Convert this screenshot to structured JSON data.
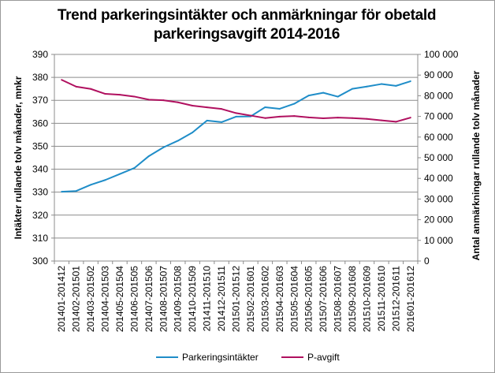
{
  "chart_data": {
    "type": "line",
    "title_line1": "Trend parkeringsintäkter och anmärkningar för obetald",
    "title_line2": "parkeringsavgift 2014-2016",
    "ylabel_left": "Intäkter rullande tolv månader, mnkr",
    "ylabel_right": "Antal anmärkningar rullande tolv månader",
    "ylim_left": [
      300,
      390
    ],
    "ylim_right": [
      0,
      100000
    ],
    "yticks_left": [
      "300",
      "310",
      "320",
      "330",
      "340",
      "350",
      "360",
      "370",
      "380",
      "390"
    ],
    "yticks_right": [
      "0",
      "10 000",
      "20 000",
      "30 000",
      "40 000",
      "50 000",
      "60 000",
      "70 000",
      "80 000",
      "90 000",
      "100 000"
    ],
    "categories": [
      "201401-201412",
      "201402-201501",
      "201403-201502",
      "201404-201503",
      "201405-201504",
      "201406-201505",
      "201407-201506",
      "201408-201507",
      "201409-201508",
      "201410-201509",
      "201411-201510",
      "201412-201511",
      "201501-201512",
      "201502-201601",
      "201503-201602",
      "201504-201603",
      "201505-201604",
      "201506-201605",
      "201507-201606",
      "201508-201607",
      "201509-201608",
      "201510-201609",
      "201511-201610",
      "201512-201611",
      "201601-201612"
    ],
    "series": [
      {
        "name": "Parkeringsintäkter",
        "axis": "left",
        "color": "#1f8dc8",
        "values": [
          330.2,
          330.5,
          333.2,
          335.3,
          337.9,
          340.5,
          345.7,
          349.5,
          352.4,
          356.0,
          361.2,
          360.5,
          362.9,
          363.0,
          367.0,
          366.3,
          368.5,
          372.1,
          373.3,
          371.6,
          375.0,
          376.0,
          377.1,
          376.3,
          378.3
        ]
      },
      {
        "name": "P-avgift",
        "axis": "right",
        "color": "#b0105f",
        "values": [
          87700,
          84400,
          83300,
          80900,
          80500,
          79600,
          78100,
          77800,
          76800,
          75200,
          74400,
          73600,
          71600,
          70400,
          69200,
          69900,
          70200,
          69500,
          69100,
          69400,
          69200,
          68800,
          68100,
          67400,
          69400
        ]
      }
    ],
    "grid": true,
    "legend_position": "bottom"
  }
}
